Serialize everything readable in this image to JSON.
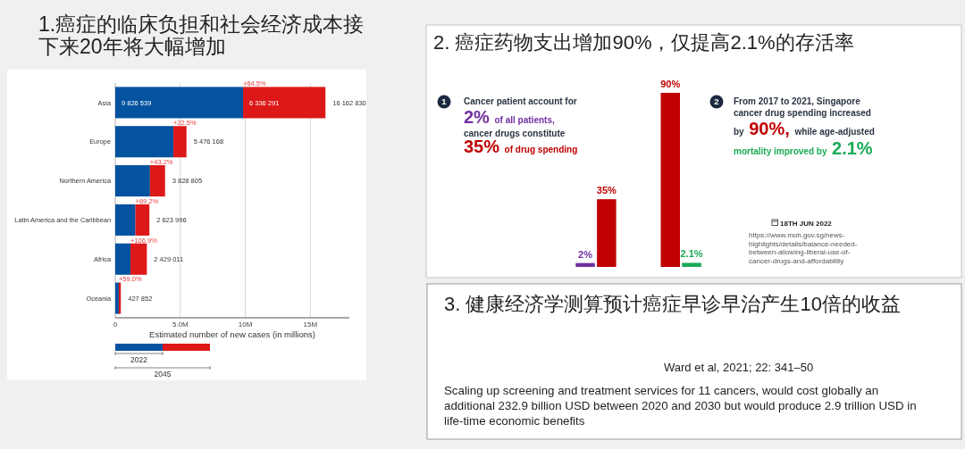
{
  "chart_data": [
    {
      "type": "bar",
      "orientation": "horizontal",
      "stacked": true,
      "title": "1.癌症的临床负担和社会经济成本接下来20年将大幅增加",
      "xlabel": "Estimated number of new cases (in millions)",
      "categories": [
        "Asia",
        "Europe",
        "Northern America",
        "Latin America and the Caribbean",
        "Africa",
        "Oceania"
      ],
      "series": [
        {
          "name": "2022",
          "color": "#0453a0",
          "values": [
            9826539,
            4470000,
            2670000,
            1550000,
            1170000,
            270000
          ],
          "value_labels": [
            "9 826 539",
            null,
            null,
            null,
            null,
            null
          ]
        },
        {
          "name": "2045",
          "color": "#dc1818",
          "values": [
            6336291,
            1006168,
            1158805,
            1073996,
            1259011,
            157852
          ],
          "value_labels": [
            "6 336 291",
            null,
            null,
            null,
            null,
            null
          ]
        }
      ],
      "totals": [
        "16 162 830",
        "5 476 168",
        "3 828 805",
        "2 623 996",
        "2 429 011",
        "427 852"
      ],
      "annotations": [
        {
          "text": "+64.5%",
          "x": 9826539,
          "y": "Asia"
        },
        {
          "text": "+22.5%",
          "x": 4470000,
          "y": "Europe"
        },
        {
          "text": "+43.2%",
          "x": 2670000,
          "y": "Northern America"
        },
        {
          "text": "+69.2%",
          "x": 1550000,
          "y": "Latin America and the Caribbean"
        },
        {
          "text": "+106.9%",
          "x": 1170000,
          "y": "Africa"
        },
        {
          "text": "+59.0%",
          "x": 270000,
          "y": "Oceania"
        }
      ],
      "xlim": [
        0,
        18000000
      ],
      "xticks": [
        0,
        {
          "value": 5000000,
          "label": "5.0M"
        },
        {
          "value": 10000000,
          "label": "10M"
        },
        {
          "value": 15000000,
          "label": "15M"
        }
      ],
      "grid": "x",
      "legend": "bottom"
    },
    {
      "type": "bar",
      "title": "2. 癌症药物支出增加90%，仅提高2.1%的存活率",
      "categories": [
        null,
        null,
        null,
        null
      ],
      "values": [
        2,
        35,
        90,
        2.1
      ],
      "colors": [
        "#7030a0",
        "#c00000",
        "#c00000",
        "#1aaa55"
      ],
      "value_labels": [
        "2%",
        "35%",
        "90%",
        "2.1%"
      ],
      "tick_labels": false,
      "annotations": [
        "1",
        "Cancer patient account for",
        "2% of all patients,",
        "cancer drugs constitute",
        "35% of drug spending",
        "2",
        "From 2017 to 2021, Singapore",
        "cancer drug spending increased",
        "by 90%, while age-adjusted",
        "mortality improved by 2.1%",
        "18TH JUN 2022",
        "https://www.moh.gov.sg/news-highlights/details/balance-needed-between-allowing-liberal-use-of-cancer-drugs-and-affordability"
      ]
    },
    {
      "type": "other",
      "title": "3. 健康经济学测算预计癌症早诊早治产生10倍的收益",
      "annotations": [
        "Ward et al, 2021; 22: 341–50",
        "Scaling up screening and treatment services for 11 cancers, would cost globally an additional 232.9 billion USD between 2020 and 2030 but would produce 2.9 trillion USD in life-time economic benefits"
      ]
    }
  ]
}
